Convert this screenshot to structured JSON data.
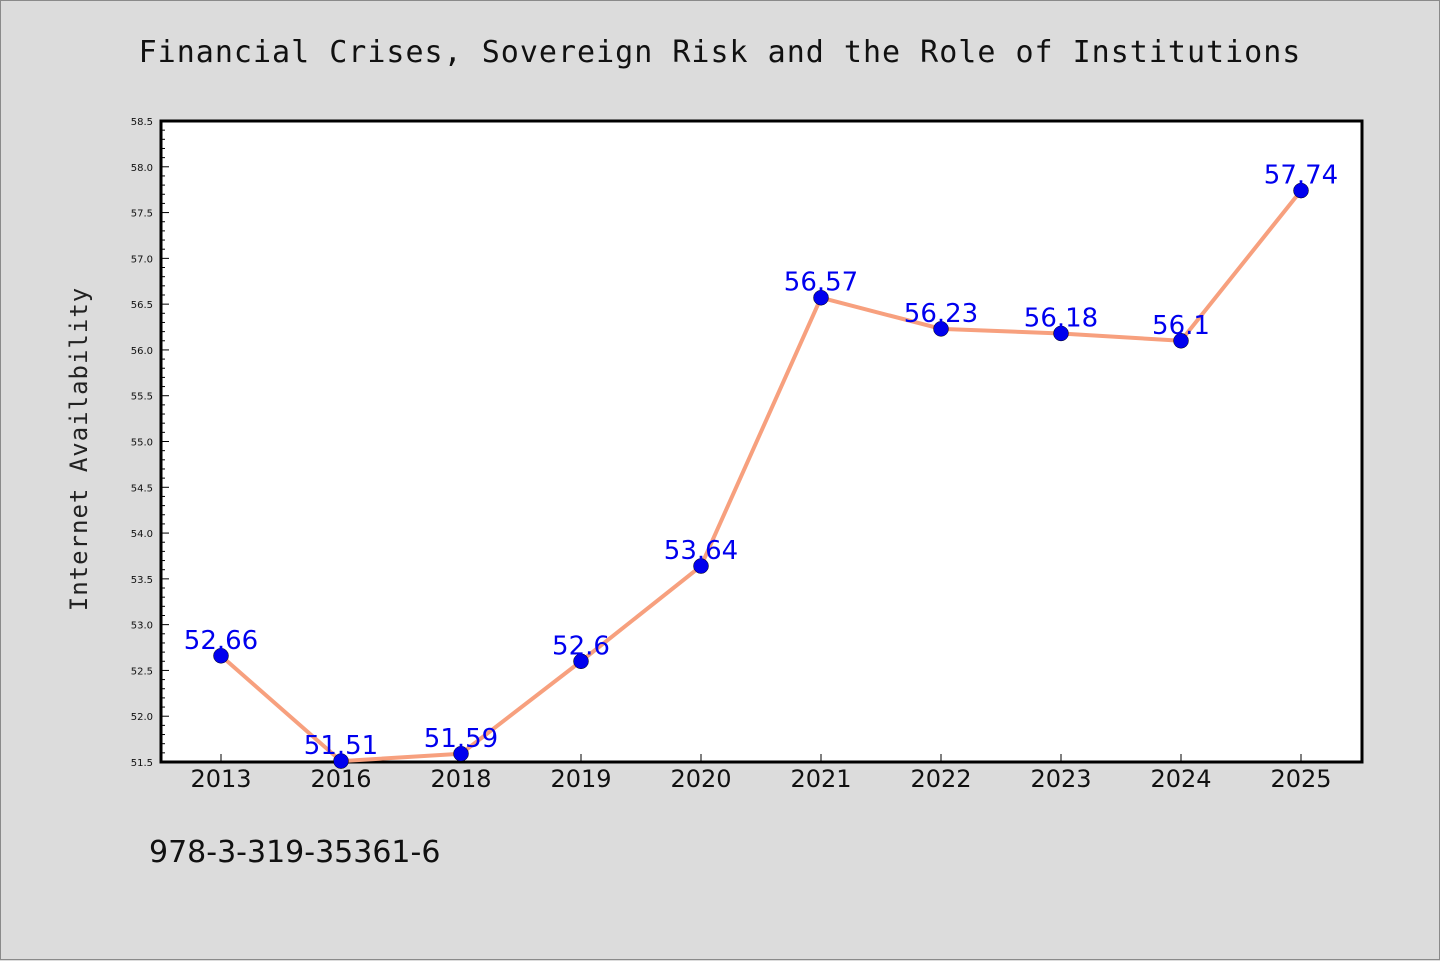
{
  "title": "Financial Crises, Sovereign Risk and the Role of Institutions",
  "footer_text": "978-3-319-35361-6",
  "colors": {
    "background": "#dcdcdc",
    "plot_background": "#ffffff",
    "line": "#f7a07e",
    "marker": "#0000ee",
    "data_label": "#0000ee"
  },
  "chart_data": {
    "type": "line",
    "title": "Financial Crises, Sovereign Risk and the Role of Institutions",
    "xlabel": "",
    "ylabel": "Internet Availability",
    "categories": [
      "2013",
      "2016",
      "2018",
      "2019",
      "2020",
      "2021",
      "2022",
      "2023",
      "2024",
      "2025"
    ],
    "values": [
      52.66,
      51.51,
      51.59,
      52.6,
      53.64,
      56.57,
      56.23,
      56.18,
      56.1,
      57.74
    ],
    "data_labels": [
      "52.66",
      "51.51",
      "51.59",
      "52.6",
      "53.64",
      "56.57",
      "56.23",
      "56.18",
      "56.1",
      "57.74"
    ],
    "ylim": [
      51.5,
      58.5
    ],
    "yticks": [
      "51.5",
      "52.0",
      "52.5",
      "53.0",
      "53.5",
      "54.0",
      "54.5",
      "55.0",
      "55.5",
      "56.0",
      "56.5",
      "57.0",
      "57.5",
      "58.0",
      "58.5"
    ],
    "grid": false,
    "legend": "none"
  }
}
